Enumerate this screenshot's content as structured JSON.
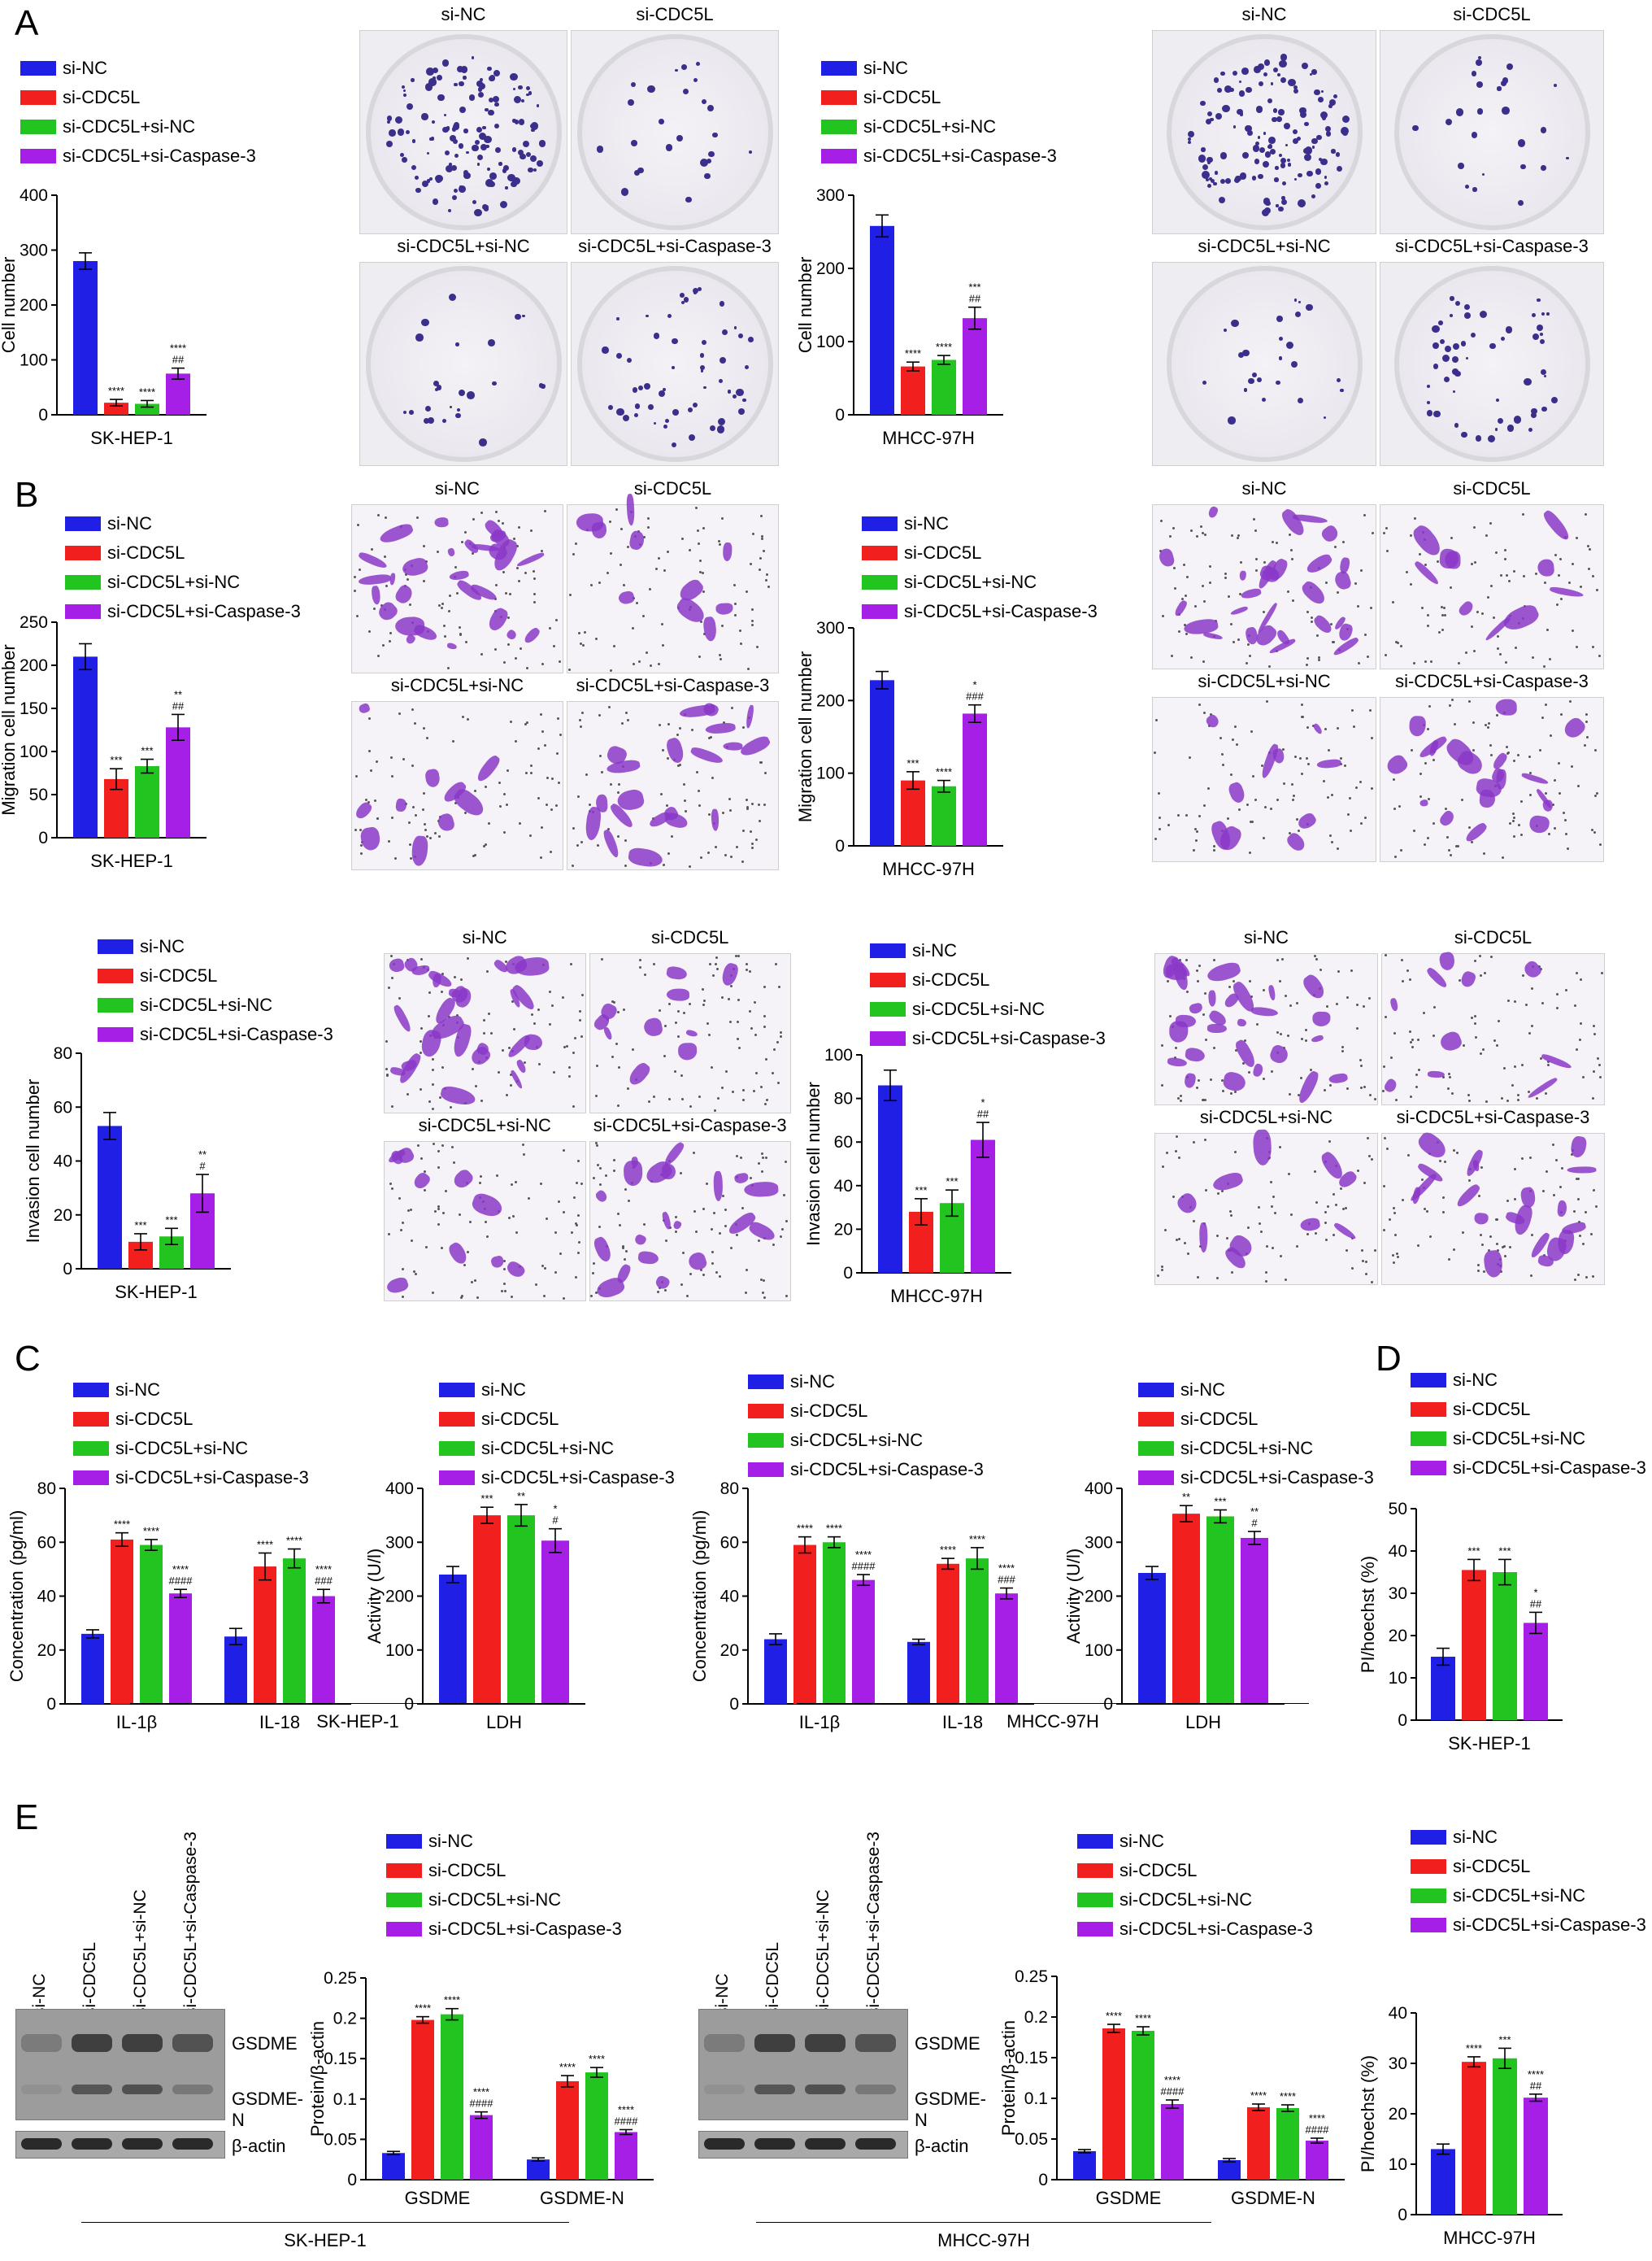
{
  "panels": {
    "A": "A",
    "B": "B",
    "C": "C",
    "D": "D",
    "E": "E"
  },
  "legend": [
    "si-NC",
    "si-CDC5L",
    "si-CDC5L+si-NC",
    "si-CDC5L+si-Caspase-3"
  ],
  "colors": {
    "si-NC": "#1f1fe6",
    "si-CDC5L": "#f21f1f",
    "si-CDC5L+si-NC": "#22c41f",
    "si-CDC5L+si-Caspase-3": "#a51fe6"
  },
  "photo_labels": [
    "si-NC",
    "si-CDC5L",
    "si-CDC5L+si-NC",
    "si-CDC5L+si-Caspase-3"
  ],
  "blot": {
    "lanes": [
      "si-NC",
      "si-CDC5L",
      "si-CDC5L+si-NC",
      "si-CDC5L+si-Caspase-3"
    ],
    "bands": [
      "GSDME",
      "GSDME-N",
      "β-actin"
    ]
  },
  "chart_data": [
    {
      "id": "a1",
      "type": "bar",
      "ylabel": "Cell number",
      "xlabel": "SK-HEP-1",
      "ylim": [
        0,
        400
      ],
      "yticks": [
        0,
        100,
        200,
        300,
        400
      ],
      "series": [
        {
          "name": "si-NC",
          "values": [
            280
          ],
          "err": [
            15
          ]
        },
        {
          "name": "si-CDC5L",
          "values": [
            22
          ],
          "err": [
            6
          ]
        },
        {
          "name": "si-CDC5L+si-NC",
          "values": [
            20
          ],
          "err": [
            6
          ]
        },
        {
          "name": "si-CDC5L+si-Caspase-3",
          "values": [
            75
          ],
          "err": [
            10
          ]
        }
      ],
      "annotations": [
        [
          "",
          ""
        ],
        [
          "****",
          ""
        ],
        [
          "****",
          ""
        ],
        [
          "****",
          "##"
        ]
      ]
    },
    {
      "id": "a2",
      "type": "bar",
      "ylabel": "Cell number",
      "xlabel": "MHCC-97H",
      "ylim": [
        0,
        300
      ],
      "yticks": [
        0,
        100,
        200,
        300
      ],
      "series": [
        {
          "name": "si-NC",
          "values": [
            258
          ],
          "err": [
            15
          ]
        },
        {
          "name": "si-CDC5L",
          "values": [
            66
          ],
          "err": [
            6
          ]
        },
        {
          "name": "si-CDC5L+si-NC",
          "values": [
            75
          ],
          "err": [
            6
          ]
        },
        {
          "name": "si-CDC5L+si-Caspase-3",
          "values": [
            132
          ],
          "err": [
            15
          ]
        }
      ],
      "annotations": [
        [
          "",
          ""
        ],
        [
          "****",
          ""
        ],
        [
          "****",
          ""
        ],
        [
          "***",
          "##"
        ]
      ]
    },
    {
      "id": "b1",
      "type": "bar",
      "ylabel": "Migration cell number",
      "xlabel": "SK-HEP-1",
      "ylim": [
        0,
        250
      ],
      "yticks": [
        0,
        50,
        100,
        150,
        200,
        250
      ],
      "series": [
        {
          "name": "si-NC",
          "values": [
            210
          ],
          "err": [
            15
          ]
        },
        {
          "name": "si-CDC5L",
          "values": [
            68
          ],
          "err": [
            12
          ]
        },
        {
          "name": "si-CDC5L+si-NC",
          "values": [
            83
          ],
          "err": [
            8
          ]
        },
        {
          "name": "si-CDC5L+si-Caspase-3",
          "values": [
            128
          ],
          "err": [
            15
          ]
        }
      ],
      "annotations": [
        [
          "",
          ""
        ],
        [
          "***",
          ""
        ],
        [
          "***",
          ""
        ],
        [
          "**",
          "##"
        ]
      ]
    },
    {
      "id": "b2",
      "type": "bar",
      "ylabel": "Migration cell number",
      "xlabel": "MHCC-97H",
      "ylim": [
        0,
        300
      ],
      "yticks": [
        0,
        100,
        200,
        300
      ],
      "series": [
        {
          "name": "si-NC",
          "values": [
            228
          ],
          "err": [
            12
          ]
        },
        {
          "name": "si-CDC5L",
          "values": [
            90
          ],
          "err": [
            12
          ]
        },
        {
          "name": "si-CDC5L+si-NC",
          "values": [
            82
          ],
          "err": [
            8
          ]
        },
        {
          "name": "si-CDC5L+si-Caspase-3",
          "values": [
            182
          ],
          "err": [
            12
          ]
        }
      ],
      "annotations": [
        [
          "",
          ""
        ],
        [
          "***",
          ""
        ],
        [
          "****",
          ""
        ],
        [
          "*",
          "###"
        ]
      ]
    },
    {
      "id": "b3",
      "type": "bar",
      "ylabel": "Invasion cell number",
      "xlabel": "SK-HEP-1",
      "ylim": [
        0,
        80
      ],
      "yticks": [
        0,
        20,
        40,
        60,
        80
      ],
      "series": [
        {
          "name": "si-NC",
          "values": [
            53
          ],
          "err": [
            5
          ]
        },
        {
          "name": "si-CDC5L",
          "values": [
            10
          ],
          "err": [
            3
          ]
        },
        {
          "name": "si-CDC5L+si-NC",
          "values": [
            12
          ],
          "err": [
            3
          ]
        },
        {
          "name": "si-CDC5L+si-Caspase-3",
          "values": [
            28
          ],
          "err": [
            7
          ]
        }
      ],
      "annotations": [
        [
          "",
          ""
        ],
        [
          "***",
          ""
        ],
        [
          "***",
          ""
        ],
        [
          "**",
          "#"
        ]
      ]
    },
    {
      "id": "b4",
      "type": "bar",
      "ylabel": "Invasion cell number",
      "xlabel": "MHCC-97H",
      "ylim": [
        0,
        100
      ],
      "yticks": [
        0,
        20,
        40,
        60,
        80,
        100
      ],
      "series": [
        {
          "name": "si-NC",
          "values": [
            86
          ],
          "err": [
            7
          ]
        },
        {
          "name": "si-CDC5L",
          "values": [
            28
          ],
          "err": [
            6
          ]
        },
        {
          "name": "si-CDC5L+si-NC",
          "values": [
            32
          ],
          "err": [
            6
          ]
        },
        {
          "name": "si-CDC5L+si-Caspase-3",
          "values": [
            61
          ],
          "err": [
            8
          ]
        }
      ],
      "annotations": [
        [
          "",
          ""
        ],
        [
          "***",
          ""
        ],
        [
          "***",
          ""
        ],
        [
          "*",
          "##"
        ]
      ]
    },
    {
      "id": "c1",
      "type": "bar",
      "ylabel": "Concentration (pg/ml)",
      "xlabel": "",
      "ylim": [
        0,
        80
      ],
      "yticks": [
        0,
        20,
        40,
        60,
        80
      ],
      "categories": [
        "IL-1β",
        "IL-18"
      ],
      "series": [
        {
          "name": "si-NC",
          "values": [
            26,
            25
          ],
          "err": [
            1.5,
            3
          ]
        },
        {
          "name": "si-CDC5L",
          "values": [
            61,
            51
          ],
          "err": [
            2.5,
            5
          ]
        },
        {
          "name": "si-CDC5L+si-NC",
          "values": [
            59,
            54
          ],
          "err": [
            2,
            3.5
          ]
        },
        {
          "name": "si-CDC5L+si-Caspase-3",
          "values": [
            41,
            40
          ],
          "err": [
            1.5,
            2.5
          ]
        }
      ],
      "annotations": [
        [
          "",
          ""
        ],
        [
          "****",
          ""
        ],
        [
          "****",
          ""
        ],
        [
          "****",
          "####"
        ],
        [
          "",
          ""
        ],
        [
          "****",
          ""
        ],
        [
          "****",
          ""
        ],
        [
          "****",
          "###"
        ]
      ]
    },
    {
      "id": "c2",
      "type": "bar",
      "ylabel": "Activity (U/l)",
      "xlabel": "",
      "ylim": [
        0,
        400
      ],
      "yticks": [
        0,
        100,
        200,
        300,
        400
      ],
      "categories": [
        "LDH"
      ],
      "series": [
        {
          "name": "si-NC",
          "values": [
            240
          ],
          "err": [
            15
          ]
        },
        {
          "name": "si-CDC5L",
          "values": [
            350
          ],
          "err": [
            15
          ]
        },
        {
          "name": "si-CDC5L+si-NC",
          "values": [
            350
          ],
          "err": [
            20
          ]
        },
        {
          "name": "si-CDC5L+si-Caspase-3",
          "values": [
            303
          ],
          "err": [
            22
          ]
        }
      ],
      "annotations": [
        [
          "",
          ""
        ],
        [
          "***",
          ""
        ],
        [
          "**",
          ""
        ],
        [
          "*",
          "#"
        ]
      ]
    },
    {
      "id": "c3",
      "type": "bar",
      "ylabel": "Concentration (pg/ml)",
      "xlabel": "",
      "ylim": [
        0,
        80
      ],
      "yticks": [
        0,
        20,
        40,
        60,
        80
      ],
      "categories": [
        "IL-1β",
        "IL-18"
      ],
      "series": [
        {
          "name": "si-NC",
          "values": [
            24,
            23
          ],
          "err": [
            2,
            1
          ]
        },
        {
          "name": "si-CDC5L",
          "values": [
            59,
            52
          ],
          "err": [
            3,
            2
          ]
        },
        {
          "name": "si-CDC5L+si-NC",
          "values": [
            60,
            54
          ],
          "err": [
            2,
            4
          ]
        },
        {
          "name": "si-CDC5L+si-Caspase-3",
          "values": [
            46,
            41
          ],
          "err": [
            2,
            2
          ]
        }
      ],
      "annotations": [
        [
          "",
          ""
        ],
        [
          "****",
          ""
        ],
        [
          "****",
          ""
        ],
        [
          "****",
          "####"
        ],
        [
          "",
          ""
        ],
        [
          "****",
          ""
        ],
        [
          "****",
          ""
        ],
        [
          "****",
          "###"
        ]
      ]
    },
    {
      "id": "c4",
      "type": "bar",
      "ylabel": "Activity (U/l)",
      "xlabel": "",
      "ylim": [
        0,
        400
      ],
      "yticks": [
        0,
        100,
        200,
        300,
        400
      ],
      "categories": [
        "LDH"
      ],
      "series": [
        {
          "name": "si-NC",
          "values": [
            243
          ],
          "err": [
            12
          ]
        },
        {
          "name": "si-CDC5L",
          "values": [
            353
          ],
          "err": [
            15
          ]
        },
        {
          "name": "si-CDC5L+si-NC",
          "values": [
            348
          ],
          "err": [
            12
          ]
        },
        {
          "name": "si-CDC5L+si-Caspase-3",
          "values": [
            308
          ],
          "err": [
            12
          ]
        }
      ],
      "annotations": [
        [
          "",
          ""
        ],
        [
          "**",
          ""
        ],
        [
          "***",
          ""
        ],
        [
          "**",
          "#"
        ]
      ]
    },
    {
      "id": "d1",
      "type": "bar",
      "ylabel": "PI/hoechst (%)",
      "xlabel": "SK-HEP-1",
      "ylim": [
        0,
        50
      ],
      "yticks": [
        0,
        10,
        20,
        30,
        40,
        50
      ],
      "series": [
        {
          "name": "si-NC",
          "values": [
            15
          ],
          "err": [
            2
          ]
        },
        {
          "name": "si-CDC5L",
          "values": [
            35.5
          ],
          "err": [
            2.5
          ]
        },
        {
          "name": "si-CDC5L+si-NC",
          "values": [
            35
          ],
          "err": [
            3
          ]
        },
        {
          "name": "si-CDC5L+si-Caspase-3",
          "values": [
            23
          ],
          "err": [
            2.5
          ]
        }
      ],
      "annotations": [
        [
          "",
          ""
        ],
        [
          "***",
          ""
        ],
        [
          "***",
          ""
        ],
        [
          "*",
          "##"
        ]
      ]
    },
    {
      "id": "e1",
      "type": "bar",
      "ylabel": "Protein/β-actin",
      "xlabel": "",
      "ylim": [
        0,
        0.25
      ],
      "yticks": [
        0,
        0.05,
        0.1,
        0.15,
        0.2,
        0.25
      ],
      "categories": [
        "GSDME",
        "GSDME-N"
      ],
      "series": [
        {
          "name": "si-NC",
          "values": [
            0.033,
            0.025
          ],
          "err": [
            0.002,
            0.002
          ]
        },
        {
          "name": "si-CDC5L",
          "values": [
            0.198,
            0.122
          ],
          "err": [
            0.004,
            0.007
          ]
        },
        {
          "name": "si-CDC5L+si-NC",
          "values": [
            0.205,
            0.133
          ],
          "err": [
            0.007,
            0.006
          ]
        },
        {
          "name": "si-CDC5L+si-Caspase-3",
          "values": [
            0.08,
            0.059
          ],
          "err": [
            0.004,
            0.003
          ]
        }
      ],
      "annotations": [
        [
          "",
          ""
        ],
        [
          "****",
          ""
        ],
        [
          "****",
          ""
        ],
        [
          "****",
          "####"
        ],
        [
          "",
          ""
        ],
        [
          "****",
          ""
        ],
        [
          "****",
          ""
        ],
        [
          "****",
          "####"
        ]
      ]
    },
    {
      "id": "e2",
      "type": "bar",
      "ylabel": "Protein/β-actin",
      "xlabel": "",
      "ylim": [
        0,
        0.25
      ],
      "yticks": [
        0,
        0.05,
        0.1,
        0.15,
        0.2,
        0.25
      ],
      "categories": [
        "GSDME",
        "GSDME-N"
      ],
      "series": [
        {
          "name": "si-NC",
          "values": [
            0.035,
            0.024
          ],
          "err": [
            0.002,
            0.002
          ]
        },
        {
          "name": "si-CDC5L",
          "values": [
            0.186,
            0.089
          ],
          "err": [
            0.005,
            0.004
          ]
        },
        {
          "name": "si-CDC5L+si-NC",
          "values": [
            0.183,
            0.088
          ],
          "err": [
            0.005,
            0.004
          ]
        },
        {
          "name": "si-CDC5L+si-Caspase-3",
          "values": [
            0.093,
            0.048
          ],
          "err": [
            0.005,
            0.003
          ]
        }
      ],
      "annotations": [
        [
          "",
          ""
        ],
        [
          "****",
          ""
        ],
        [
          "****",
          ""
        ],
        [
          "****",
          "####"
        ],
        [
          "",
          ""
        ],
        [
          "****",
          ""
        ],
        [
          "****",
          ""
        ],
        [
          "****",
          "####"
        ]
      ]
    },
    {
      "id": "e3",
      "type": "bar",
      "ylabel": "PI/hoechst (%)",
      "xlabel": "MHCC-97H",
      "ylim": [
        0,
        40
      ],
      "yticks": [
        0,
        10,
        20,
        30,
        40
      ],
      "series": [
        {
          "name": "si-NC",
          "values": [
            13
          ],
          "err": [
            1
          ]
        },
        {
          "name": "si-CDC5L",
          "values": [
            30.3
          ],
          "err": [
            1
          ]
        },
        {
          "name": "si-CDC5L+si-NC",
          "values": [
            31
          ],
          "err": [
            2
          ]
        },
        {
          "name": "si-CDC5L+si-Caspase-3",
          "values": [
            23.2
          ],
          "err": [
            0.7
          ]
        }
      ],
      "annotations": [
        [
          "",
          ""
        ],
        [
          "****",
          ""
        ],
        [
          "***",
          ""
        ],
        [
          "****",
          "##"
        ]
      ]
    }
  ],
  "group_labels": {
    "c_sk": "SK-HEP-1",
    "c_mh": "MHCC-97H",
    "e_sk": "SK-HEP-1",
    "e_mh": "MHCC-97H"
  }
}
